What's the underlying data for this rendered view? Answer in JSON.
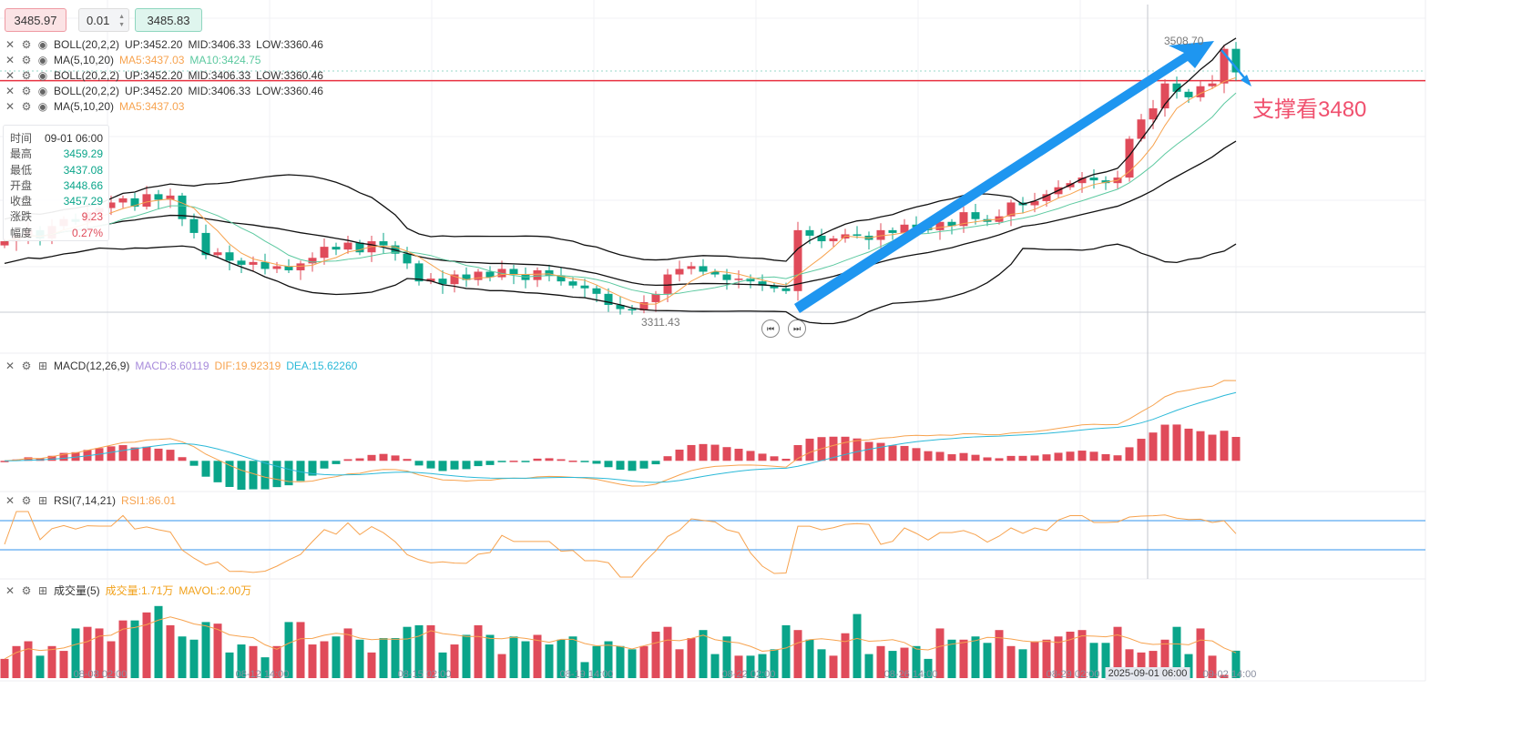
{
  "toolbar": {
    "sell_price": "3485.97",
    "lot_size": "0.01",
    "buy_price": "3485.83"
  },
  "legends": {
    "boll1": {
      "name": "BOLL(20,2,2)",
      "up": "UP:3452.20",
      "mid": "MID:3406.33",
      "low": "LOW:3360.46"
    },
    "ma1": {
      "name": "MA(5,10,20)",
      "ma5": "MA5:3437.03",
      "ma10": "MA10:3424.75"
    },
    "boll2": {
      "name": "BOLL(20,2,2)",
      "up": "UP:3452.20",
      "mid": "MID:3406.33",
      "low": "LOW:3360.46"
    },
    "boll3": {
      "name": "BOLL(20,2,2)",
      "up": "UP:3452.20",
      "mid": "MID:3406.33",
      "low": "LOW:3360.46"
    },
    "ma2": {
      "name": "MA(5,10,20)",
      "ma5": "MA5:3437.03"
    },
    "macd": {
      "name": "MACD(12,26,9)",
      "macd": "MACD:8.60119",
      "dif": "DIF:19.92319",
      "dea": "DEA:15.62260"
    },
    "rsi": {
      "name": "RSI(7,14,21)",
      "rsi1": "RSI1:86.01"
    },
    "vol": {
      "name": "成交量(5)",
      "vol": "成交量:1.71万",
      "mavol": "MAVOL:2.00万"
    }
  },
  "tooltip": {
    "rows": [
      {
        "k": "时间",
        "v": "09-01 06:00"
      },
      {
        "k": "最高",
        "v": "3459.29"
      },
      {
        "k": "最低",
        "v": "3437.08"
      },
      {
        "k": "开盘",
        "v": "3448.66"
      },
      {
        "k": "收盘",
        "v": "3457.29"
      },
      {
        "k": "涨跌",
        "v": "9.23"
      },
      {
        "k": "幅度",
        "v": "0.27%"
      }
    ]
  },
  "annotations": {
    "high_label": "3508.70",
    "low_label": "3311.43",
    "support_text": "支撑看3480"
  },
  "colors": {
    "up": "#e04b5a",
    "down": "#0aa58a",
    "ma5": "#f7a34f",
    "ma10": "#5cc9a0",
    "boll": "#111111",
    "arrow": "#1e96f0",
    "hline": "#e8303f",
    "macd": "#a78bdb",
    "dif": "#f7a34f",
    "dea": "#2bb9d8",
    "rsi_ref": "#5aa9f0"
  },
  "chart_data": {
    "type": "candlestick",
    "x_ticks": [
      "08-08 02:00",
      "08-12 14:00",
      "08-15 02:00",
      "08-19 14:00",
      "08-22 02:00",
      "08-26 14:00",
      "08-29 02:00",
      "09-02 14:00"
    ],
    "crosshair_label": "2025-09-01 06:00",
    "high_price": 3508.7,
    "low_price": 3311.43,
    "support_line": 3480,
    "close": [
      3364,
      3368,
      3372,
      3366,
      3375,
      3380,
      3378,
      3385,
      3388,
      3392,
      3395,
      3389,
      3398,
      3394,
      3397,
      3380,
      3370,
      3354,
      3356,
      3350,
      3347,
      3349,
      3344,
      3346,
      3343,
      3348,
      3352,
      3360,
      3358,
      3363,
      3356,
      3364,
      3361,
      3355,
      3348,
      3335,
      3337,
      3333,
      3340,
      3336,
      3342,
      3338,
      3344,
      3340,
      3336,
      3343,
      3339,
      3335,
      3332,
      3330,
      3326,
      3318,
      3315,
      3314,
      3320,
      3326,
      3340,
      3344,
      3346,
      3342,
      3340,
      3336,
      3337,
      3335,
      3332,
      3330,
      3328,
      3372,
      3368,
      3364,
      3366,
      3369,
      3368,
      3365,
      3372,
      3370,
      3376,
      3374,
      3372,
      3378,
      3375,
      3385,
      3380,
      3378,
      3382,
      3392,
      3390,
      3393,
      3398,
      3403,
      3406,
      3410,
      3408,
      3406,
      3410,
      3438,
      3452,
      3460,
      3478,
      3472,
      3468,
      3476,
      3478,
      3503,
      3486
    ],
    "volume_wan": [
      1.2,
      2.0,
      2.3,
      1.4,
      2.0,
      1.7,
      3.1,
      3.2,
      3.1,
      2.3,
      3.6,
      3.6,
      4.1,
      4.5,
      3.3,
      2.6,
      2.4,
      3.5,
      3.4,
      1.6,
      2.1,
      2.0,
      1.3,
      2.0,
      3.5,
      3.5,
      2.1,
      2.3,
      2.6,
      3.1,
      2.4,
      1.6,
      2.5,
      2.5,
      3.2,
      3.3,
      3.3,
      1.6,
      2.1,
      2.7,
      3.3,
      2.7,
      1.5,
      2.6,
      2.3,
      2.7,
      2.1,
      2.4,
      2.6,
      1.0,
      2.0,
      2.3,
      2.0,
      1.8,
      2.0,
      2.9,
      3.2,
      1.8,
      2.5,
      3.0,
      1.5,
      2.6,
      1.4,
      1.4,
      1.5,
      1.8,
      3.3,
      3.0,
      2.4,
      1.8,
      1.4,
      2.8,
      4.0,
      1.5,
      2.0,
      1.7,
      1.9,
      2.0,
      1.2,
      3.1,
      2.4,
      2.4,
      2.6,
      2.2,
      3.0,
      2.0,
      1.8,
      2.3,
      2.4,
      2.6,
      2.9,
      3.0,
      2.2,
      2.2,
      3.2,
      1.8,
      1.6,
      1.7,
      2.4,
      3.2,
      1.5,
      3.1,
      1.4,
      0.2,
      1.71
    ]
  }
}
